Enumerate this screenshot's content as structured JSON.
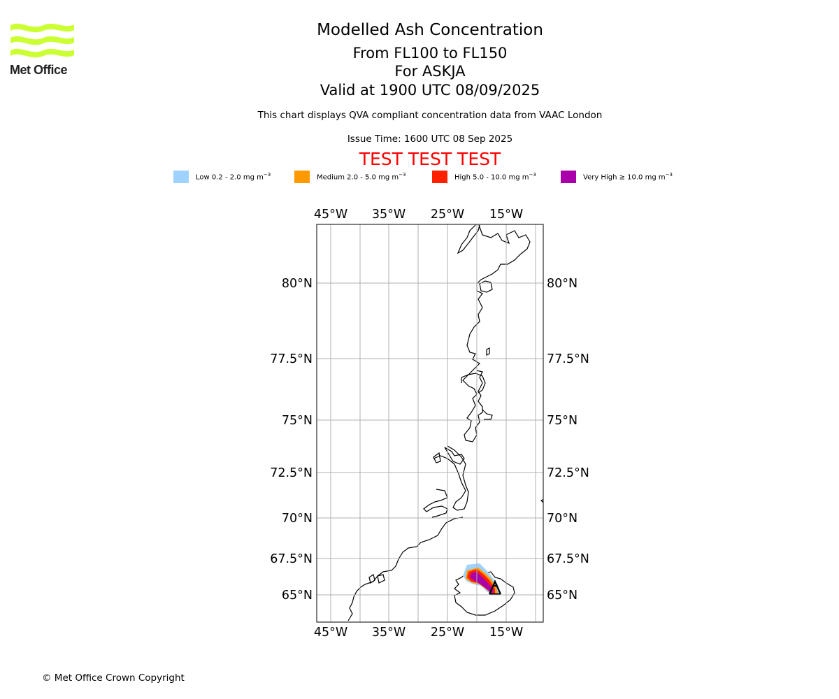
{
  "logo": {
    "text": "Met Office",
    "color": "#ccff33"
  },
  "title": {
    "main": "Modelled Ash Concentration",
    "levels": "From FL100 to FL150",
    "volcano": "For ASKJA",
    "valid": "Valid at 1900 UTC 08/09/2025"
  },
  "subtitle": "This chart displays QVA compliant concentration data from VAAC London",
  "issue_time": "Issue Time: 1600 UTC 08 Sep 2025",
  "test_banner": "TEST TEST TEST",
  "legend": [
    {
      "label": "Low 0.2 - 2.0 mg m",
      "color": "#a0d2ff"
    },
    {
      "label": "Medium 2.0 - 5.0 mg m",
      "color": "#ff9900"
    },
    {
      "label": "High 5.0 - 10.0 mg m",
      "color": "#ff2200"
    },
    {
      "label": "Very High ≥ 10.0 mg m",
      "color": "#aa00aa"
    }
  ],
  "legend_unit_exponent": "−3",
  "map": {
    "lon_ticks_top": [
      "45°W",
      "35°W",
      "25°W",
      "15°W"
    ],
    "lon_ticks_bottom": [
      "45°W",
      "35°W",
      "25°W",
      "15°W"
    ],
    "lat_ticks_left": [
      "80°N",
      "77.5°N",
      "75°N",
      "72.5°N",
      "70°N",
      "67.5°N",
      "65°N"
    ],
    "lat_ticks_right": [
      "80°N",
      "77.5°N",
      "75°N",
      "72.5°N",
      "70°N",
      "67.5°N",
      "65°N"
    ],
    "grid_color": "#b0b0b0"
  },
  "copyright": "© Met Office Crown Copyright"
}
